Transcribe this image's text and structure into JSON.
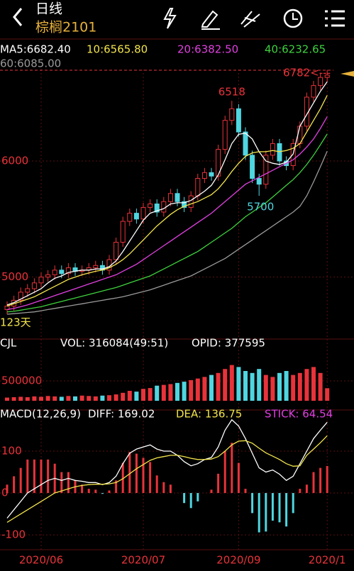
{
  "header": {
    "title": "日线",
    "subtitle": "棕榈2101"
  },
  "chart_data": [
    {
      "type": "candlestick",
      "categories": [
        null,
        null,
        null,
        null,
        null,
        "2020/06",
        null,
        null,
        null,
        null,
        null,
        null,
        null,
        null,
        null,
        null,
        null,
        null,
        null,
        null,
        "2020/07",
        null,
        null,
        null,
        null,
        null,
        null,
        null,
        null,
        null,
        null,
        null,
        null,
        null,
        "2020/09",
        null,
        null,
        null,
        null,
        null,
        null,
        null,
        null,
        null,
        null,
        null,
        null,
        "2020/1"
      ],
      "open": [
        4720,
        4750,
        4800,
        4870,
        4900,
        4950,
        5000,
        5020,
        5060,
        5030,
        5080,
        5050,
        5060,
        5080,
        5100,
        5060,
        5150,
        5300,
        5480,
        5550,
        5500,
        5600,
        5630,
        5560,
        5650,
        5720,
        5650,
        5600,
        5700,
        5850,
        5900,
        5870,
        6100,
        6350,
        6450,
        6250,
        6050,
        5850,
        5800,
        6050,
        6150,
        6000,
        5960,
        6150,
        6300,
        6550,
        6650,
        6720
      ],
      "high": [
        4790,
        4840,
        4910,
        4940,
        4990,
        5040,
        5060,
        5100,
        5100,
        5120,
        5120,
        5100,
        5120,
        5140,
        5140,
        5190,
        5340,
        5520,
        5590,
        5590,
        5640,
        5670,
        5670,
        5690,
        5760,
        5760,
        5690,
        5740,
        5890,
        5940,
        5940,
        6140,
        6390,
        6518,
        6490,
        6290,
        6090,
        5890,
        6090,
        6190,
        6190,
        6040,
        6190,
        6340,
        6590,
        6690,
        6760,
        6782
      ],
      "low": [
        4680,
        4710,
        4760,
        4830,
        4860,
        4910,
        4960,
        4980,
        4990,
        4990,
        5010,
        5010,
        5020,
        5040,
        5020,
        5020,
        5110,
        5260,
        5440,
        5460,
        5460,
        5560,
        5520,
        5520,
        5610,
        5610,
        5560,
        5560,
        5660,
        5810,
        5830,
        5830,
        6060,
        6310,
        6210,
        6010,
        5810,
        5700,
        5760,
        6010,
        5960,
        5920,
        5920,
        6110,
        6260,
        6510,
        6610,
        6680
      ],
      "close": [
        4750,
        4800,
        4870,
        4900,
        4950,
        5000,
        5020,
        5060,
        5030,
        5080,
        5050,
        5060,
        5080,
        5100,
        5060,
        5150,
        5300,
        5480,
        5550,
        5500,
        5600,
        5630,
        5560,
        5650,
        5720,
        5650,
        5600,
        5700,
        5850,
        5900,
        5870,
        6100,
        6350,
        6450,
        6250,
        6050,
        5850,
        5800,
        6050,
        6150,
        6000,
        5960,
        6150,
        6300,
        6550,
        6650,
        6720,
        6740
      ],
      "colors": {
        "up": "#e8333a",
        "down": "#4fd6e0"
      },
      "series": [
        {
          "name": "MA5:6682.40",
          "color": "#ffffff",
          "values": [
            4760,
            4780,
            4810,
            4840,
            4870,
            4900,
            4950,
            4990,
            5010,
            5040,
            5050,
            5060,
            5060,
            5070,
            5070,
            5090,
            5140,
            5220,
            5310,
            5400,
            5490,
            5550,
            5570,
            5590,
            5630,
            5640,
            5640,
            5660,
            5700,
            5740,
            5790,
            5880,
            6010,
            6150,
            6230,
            6240,
            6190,
            6080,
            6000,
            5980,
            5970,
            5990,
            6060,
            6300,
            6400,
            6500,
            6600,
            6682.4
          ]
        },
        {
          "name": "10:6565.80",
          "color": "#f2e44b",
          "values": [
            4750,
            4770,
            4790,
            4810,
            4830,
            4860,
            4890,
            4920,
            4950,
            4980,
            5000,
            5020,
            5035,
            5050,
            5060,
            5080,
            5110,
            5150,
            5200,
            5260,
            5320,
            5380,
            5440,
            5490,
            5540,
            5580,
            5610,
            5630,
            5650,
            5680,
            5710,
            5760,
            5830,
            5910,
            5980,
            6040,
            6070,
            6080,
            6080,
            6090,
            6080,
            6090,
            6110,
            6150,
            6250,
            6350,
            6450,
            6565.8
          ]
        },
        {
          "name": "20:6382.50",
          "color": "#e040e0",
          "values": [
            4720,
            4730,
            4745,
            4760,
            4780,
            4800,
            4820,
            4840,
            4860,
            4880,
            4900,
            4920,
            4940,
            4960,
            4980,
            5000,
            5020,
            5050,
            5080,
            5110,
            5150,
            5190,
            5230,
            5270,
            5310,
            5350,
            5390,
            5430,
            5470,
            5510,
            5550,
            5600,
            5650,
            5700,
            5750,
            5800,
            5830,
            5860,
            5890,
            5920,
            5950,
            5980,
            6010,
            6060,
            6120,
            6190,
            6280,
            6382.5
          ]
        },
        {
          "name": "40:6232.65",
          "color": "#3ed13e",
          "values": [
            4700,
            4705,
            4715,
            4725,
            4735,
            4745,
            4760,
            4775,
            4790,
            4805,
            4820,
            4835,
            4850,
            4865,
            4880,
            4895,
            4910,
            4930,
            4950,
            4970,
            4990,
            5010,
            5040,
            5070,
            5100,
            5130,
            5160,
            5190,
            5220,
            5260,
            5300,
            5340,
            5380,
            5420,
            5470,
            5520,
            5560,
            5600,
            5640,
            5690,
            5740,
            5790,
            5840,
            5900,
            5970,
            6050,
            6140,
            6232.65
          ]
        },
        {
          "name": "60:6085.00",
          "color": "#9a9a9a",
          "values": [
            4680,
            4685,
            4690,
            4695,
            4700,
            4710,
            4720,
            4730,
            4740,
            4750,
            4760,
            4770,
            4780,
            4790,
            4800,
            4810,
            4820,
            4830,
            4845,
            4860,
            4875,
            4890,
            4910,
            4930,
            4950,
            4970,
            4990,
            5010,
            5040,
            5070,
            5100,
            5130,
            5160,
            5200,
            5240,
            5280,
            5320,
            5360,
            5400,
            5440,
            5480,
            5520,
            5560,
            5610,
            5700,
            5820,
            5950,
            6085
          ]
        }
      ],
      "ylim": [
        4515,
        6788
      ],
      "yticks": [
        5000,
        6000
      ],
      "annotations": [
        "6518",
        "5700",
        "6782<---",
        "123天"
      ]
    },
    {
      "type": "bar",
      "title": "CJL",
      "annotations": [
        "VOL: 316084(49:51)",
        "OPID: 377595"
      ],
      "values": [
        80000,
        90000,
        100000,
        90000,
        110000,
        100000,
        120000,
        110000,
        100000,
        120000,
        110000,
        130000,
        120000,
        110000,
        130000,
        140000,
        160000,
        200000,
        250000,
        230000,
        300000,
        320000,
        380000,
        400000,
        420000,
        450000,
        480000,
        520000,
        560000,
        600000,
        650000,
        700000,
        800000,
        900000,
        850000,
        750000,
        700000,
        800000,
        650000,
        600000,
        700000,
        750000,
        650000,
        700000,
        800000,
        850000,
        700000,
        316084
      ],
      "ylim": [
        0,
        1250000
      ],
      "yticks": [
        500000
      ]
    },
    {
      "type": "macd",
      "title": "MACD(12,26,9)",
      "series": [
        {
          "name": "DIFF: 169.02",
          "color": "#ffffff",
          "values": [
            -60,
            -40,
            -20,
            0,
            10,
            20,
            30,
            35,
            30,
            35,
            30,
            28,
            25,
            25,
            20,
            25,
            40,
            70,
            95,
            105,
            110,
            115,
            105,
            100,
            100,
            90,
            75,
            65,
            70,
            80,
            85,
            110,
            150,
            175,
            160,
            130,
            95,
            60,
            50,
            55,
            45,
            30,
            40,
            70,
            100,
            130,
            150,
            169.02
          ]
        },
        {
          "name": "DEA: 136.75",
          "color": "#f2e44b",
          "values": [
            -70,
            -60,
            -50,
            -40,
            -30,
            -20,
            -10,
            0,
            5,
            10,
            15,
            18,
            20,
            21,
            21,
            22,
            25,
            34,
            46,
            58,
            68,
            78,
            84,
            87,
            90,
            90,
            87,
            83,
            80,
            80,
            81,
            87,
            100,
            115,
            124,
            125,
            119,
            107,
            96,
            88,
            80,
            70,
            64,
            65,
            90,
            105,
            120,
            136.75
          ]
        },
        {
          "name": "STICK: 64.54",
          "color": "#e040e0",
          "values": [
            20,
            40,
            60,
            80,
            80,
            80,
            80,
            70,
            50,
            50,
            30,
            20,
            10,
            8,
            -2,
            6,
            30,
            72,
            98,
            94,
            84,
            74,
            42,
            26,
            20,
            0,
            -24,
            -36,
            -20,
            0,
            8,
            46,
            100,
            120,
            72,
            10,
            -48,
            -94,
            -92,
            -66,
            -70,
            -80,
            -48,
            10,
            20,
            50,
            60,
            64.54
          ]
        }
      ],
      "colors": {
        "up": "#e8333a",
        "down": "#4fd6e0"
      },
      "ylim": [
        -127,
        178
      ],
      "yticks": [
        -100,
        0,
        100
      ]
    }
  ]
}
